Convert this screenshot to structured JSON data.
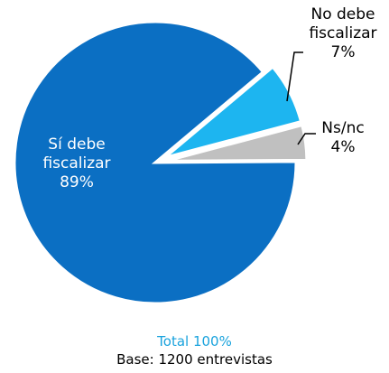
{
  "chart_data": {
    "type": "pie",
    "categories": [
      "Sí debe fiscalizar",
      "No debe fiscalizar",
      "Ns/nc"
    ],
    "values": [
      89,
      7,
      4
    ],
    "value_labels": [
      "89%",
      "7%",
      "4%"
    ],
    "colors": [
      "#0b6fc3",
      "#1db5f0",
      "#c0c0c0"
    ],
    "total": "Total 100%",
    "base": "Base:  1200 entrevistas"
  }
}
